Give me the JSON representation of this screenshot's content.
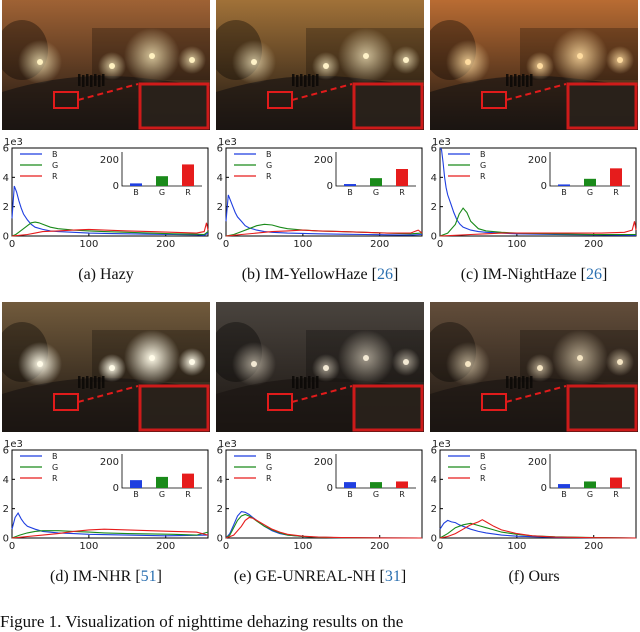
{
  "figure_caption": "Figure 1. Visualization of nighttime dehazing results on the",
  "common": {
    "scale_label": "1e3",
    "y_ticks": [
      "0",
      "2",
      "4",
      "6"
    ],
    "x_ticks": [
      "0",
      "100",
      "200"
    ],
    "inset_ticks": [
      "0",
      "200"
    ],
    "legend": [
      "B",
      "G",
      "R"
    ],
    "inset_categories": [
      "B",
      "G",
      "R"
    ]
  },
  "colors": {
    "blue": "#1f3fe0",
    "green": "#1a8a1a",
    "red": "#e61c1c",
    "zoom_box": "#e11b1b"
  },
  "panels": [
    {
      "id": "a",
      "label": "(a) Hazy",
      "cite": "",
      "photo": "hazy",
      "tint": "#9a5a2a",
      "glow": "#fff1c0",
      "glow_strength": 0.75
    },
    {
      "id": "b",
      "label": "(b) IM-YellowHaze [",
      "cite": "26",
      "photo": "yellowhaze",
      "tint": "#9c6a2e",
      "glow": "#fff2c8",
      "glow_strength": 0.7
    },
    {
      "id": "c",
      "label": "(c) IM-NightHaze [",
      "cite": "26",
      "photo": "nighthaze",
      "tint": "#b56428",
      "glow": "#ffdca0",
      "glow_strength": 0.85
    },
    {
      "id": "d",
      "label": "(d) IM-NHR [",
      "cite": "51",
      "photo": "nhr",
      "tint": "#6a5232",
      "glow": "#fffbe8",
      "glow_strength": 1.0
    },
    {
      "id": "e",
      "label": "(e) GE-UNREAL-NH [",
      "cite": "31",
      "photo": "unreal",
      "tint": "#403a34",
      "glow": "#f3e9d4",
      "glow_strength": 0.6
    },
    {
      "id": "f",
      "label": "(f) Ours",
      "cite": "",
      "photo": "ours",
      "tint": "#5a4430",
      "glow": "#f6e6c4",
      "glow_strength": 0.65
    }
  ],
  "chart_data": [
    {
      "type": "line",
      "panel": "(a) Hazy",
      "xlim": [
        0,
        255
      ],
      "ylim": [
        0,
        6
      ],
      "y_unit": "1e3",
      "series": [
        {
          "name": "B",
          "x": [
            0,
            3,
            6,
            9,
            12,
            15,
            20,
            25,
            30,
            40,
            50,
            60,
            80,
            100,
            120,
            150,
            180,
            210,
            240,
            250,
            255
          ],
          "values": [
            1.2,
            3.4,
            3.0,
            2.4,
            1.9,
            1.5,
            1.1,
            0.8,
            0.6,
            0.45,
            0.35,
            0.3,
            0.25,
            0.2,
            0.18,
            0.15,
            0.12,
            0.1,
            0.08,
            0.05,
            0.2
          ]
        },
        {
          "name": "G",
          "x": [
            0,
            5,
            10,
            15,
            20,
            25,
            30,
            35,
            40,
            50,
            60,
            80,
            100,
            120,
            150,
            180,
            210,
            240,
            250,
            255
          ],
          "values": [
            0,
            0.1,
            0.3,
            0.5,
            0.7,
            0.9,
            0.95,
            0.9,
            0.8,
            0.6,
            0.5,
            0.4,
            0.35,
            0.3,
            0.25,
            0.2,
            0.15,
            0.12,
            0.1,
            0.3
          ]
        },
        {
          "name": "R",
          "x": [
            0,
            10,
            20,
            30,
            40,
            60,
            80,
            100,
            120,
            150,
            180,
            210,
            240,
            250,
            253,
            255
          ],
          "values": [
            0,
            0.05,
            0.1,
            0.2,
            0.3,
            0.35,
            0.4,
            0.45,
            0.4,
            0.35,
            0.3,
            0.25,
            0.2,
            0.3,
            0.9,
            0.4
          ]
        }
      ],
      "inset": {
        "type": "bar",
        "categories": [
          "B",
          "G",
          "R"
        ],
        "values": [
          20,
          75,
          165
        ],
        "ylim": [
          0,
          260
        ]
      }
    },
    {
      "type": "line",
      "panel": "(b) IM-YellowHaze",
      "xlim": [
        0,
        255
      ],
      "ylim": [
        0,
        6
      ],
      "y_unit": "1e3",
      "series": [
        {
          "name": "B",
          "x": [
            0,
            3,
            6,
            9,
            12,
            15,
            20,
            25,
            30,
            40,
            50,
            60,
            80,
            100,
            120,
            150,
            180,
            210,
            240,
            255
          ],
          "values": [
            1.0,
            2.8,
            2.4,
            2.0,
            1.6,
            1.3,
            1.0,
            0.7,
            0.55,
            0.4,
            0.3,
            0.25,
            0.2,
            0.18,
            0.15,
            0.12,
            0.1,
            0.08,
            0.06,
            0.1
          ]
        },
        {
          "name": "G",
          "x": [
            0,
            10,
            20,
            30,
            40,
            50,
            60,
            70,
            80,
            100,
            120,
            150,
            180,
            210,
            240,
            255
          ],
          "values": [
            0,
            0.1,
            0.3,
            0.5,
            0.7,
            0.8,
            0.75,
            0.6,
            0.5,
            0.4,
            0.35,
            0.3,
            0.25,
            0.2,
            0.15,
            0.2
          ]
        },
        {
          "name": "R",
          "x": [
            0,
            10,
            20,
            40,
            60,
            80,
            100,
            120,
            150,
            180,
            210,
            240,
            250,
            255
          ],
          "values": [
            0,
            0.05,
            0.1,
            0.2,
            0.3,
            0.35,
            0.4,
            0.35,
            0.3,
            0.25,
            0.2,
            0.2,
            0.4,
            0.2
          ]
        }
      ],
      "inset": {
        "type": "bar",
        "categories": [
          "B",
          "G",
          "R"
        ],
        "values": [
          15,
          60,
          130
        ],
        "ylim": [
          0,
          260
        ]
      }
    },
    {
      "type": "line",
      "panel": "(c) IM-NightHaze",
      "xlim": [
        0,
        255
      ],
      "ylim": [
        0,
        6
      ],
      "y_unit": "1e3",
      "series": [
        {
          "name": "B",
          "x": [
            0,
            2,
            4,
            6,
            8,
            10,
            14,
            18,
            22,
            26,
            30,
            40,
            50,
            60,
            80,
            100,
            150,
            200,
            255
          ],
          "values": [
            6.5,
            5.9,
            5.0,
            4.0,
            3.3,
            2.8,
            2.2,
            1.6,
            1.1,
            0.8,
            0.6,
            0.4,
            0.3,
            0.25,
            0.2,
            0.15,
            0.1,
            0.08,
            0.05
          ]
        },
        {
          "name": "G",
          "x": [
            0,
            10,
            20,
            25,
            30,
            35,
            40,
            50,
            60,
            80,
            100,
            150,
            200,
            255
          ],
          "values": [
            0,
            0.2,
            0.8,
            1.5,
            1.9,
            1.6,
            1.0,
            0.5,
            0.35,
            0.25,
            0.2,
            0.15,
            0.1,
            0.1
          ]
        },
        {
          "name": "R",
          "x": [
            0,
            20,
            40,
            60,
            80,
            100,
            120,
            150,
            180,
            210,
            240,
            250,
            253,
            255
          ],
          "values": [
            0,
            0.05,
            0.1,
            0.15,
            0.2,
            0.2,
            0.2,
            0.2,
            0.2,
            0.2,
            0.25,
            0.4,
            1.0,
            0.4
          ]
        }
      ],
      "inset": {
        "type": "bar",
        "categories": [
          "B",
          "G",
          "R"
        ],
        "values": [
          12,
          55,
          135
        ],
        "ylim": [
          0,
          260
        ]
      }
    },
    {
      "type": "line",
      "panel": "(d) IM-NHR",
      "xlim": [
        0,
        255
      ],
      "ylim": [
        0,
        6
      ],
      "y_unit": "1e3",
      "series": [
        {
          "name": "B",
          "x": [
            0,
            4,
            8,
            12,
            16,
            20,
            30,
            40,
            60,
            80,
            100,
            150,
            200,
            255
          ],
          "values": [
            0.6,
            1.4,
            1.7,
            1.3,
            1.0,
            0.8,
            0.6,
            0.45,
            0.35,
            0.3,
            0.25,
            0.2,
            0.15,
            0.2
          ]
        },
        {
          "name": "G",
          "x": [
            0,
            10,
            20,
            30,
            40,
            60,
            80,
            100,
            120,
            150,
            180,
            210,
            240,
            255
          ],
          "values": [
            0,
            0.2,
            0.35,
            0.45,
            0.5,
            0.5,
            0.45,
            0.4,
            0.35,
            0.3,
            0.28,
            0.25,
            0.2,
            0.4
          ]
        },
        {
          "name": "R",
          "x": [
            0,
            10,
            20,
            40,
            60,
            80,
            100,
            120,
            150,
            180,
            210,
            240,
            255
          ],
          "values": [
            0,
            0.05,
            0.1,
            0.2,
            0.3,
            0.45,
            0.55,
            0.6,
            0.55,
            0.5,
            0.45,
            0.4,
            0.2
          ]
        }
      ],
      "inset": {
        "type": "bar",
        "categories": [
          "B",
          "G",
          "R"
        ],
        "values": [
          60,
          85,
          110
        ],
        "ylim": [
          0,
          260
        ]
      }
    },
    {
      "type": "line",
      "panel": "(e) GE-UNREAL-NH",
      "xlim": [
        0,
        255
      ],
      "ylim": [
        0,
        6
      ],
      "y_unit": "1e3",
      "series": [
        {
          "name": "B",
          "x": [
            0,
            5,
            10,
            15,
            20,
            25,
            30,
            35,
            40,
            50,
            60,
            70,
            80,
            100,
            120,
            150,
            200,
            255
          ],
          "values": [
            0,
            0.3,
            0.9,
            1.5,
            1.8,
            1.75,
            1.6,
            1.4,
            1.2,
            0.8,
            0.5,
            0.3,
            0.2,
            0.1,
            0.05,
            0.02,
            0.01,
            0
          ]
        },
        {
          "name": "G",
          "x": [
            0,
            5,
            10,
            15,
            20,
            25,
            30,
            35,
            40,
            50,
            60,
            70,
            80,
            100,
            120,
            150,
            200,
            255
          ],
          "values": [
            0,
            0.2,
            0.7,
            1.2,
            1.5,
            1.6,
            1.5,
            1.35,
            1.15,
            0.8,
            0.55,
            0.35,
            0.2,
            0.1,
            0.05,
            0.02,
            0.01,
            0
          ]
        },
        {
          "name": "R",
          "x": [
            0,
            10,
            20,
            25,
            30,
            35,
            40,
            50,
            60,
            70,
            80,
            100,
            120,
            150,
            200,
            255
          ],
          "values": [
            0,
            0.2,
            0.8,
            1.2,
            1.4,
            1.35,
            1.2,
            0.9,
            0.6,
            0.4,
            0.25,
            0.12,
            0.06,
            0.03,
            0.01,
            0
          ]
        }
      ],
      "inset": {
        "type": "bar",
        "categories": [
          "B",
          "G",
          "R"
        ],
        "values": [
          45,
          45,
          50
        ],
        "ylim": [
          0,
          260
        ]
      }
    },
    {
      "type": "line",
      "panel": "(f) Ours",
      "xlim": [
        0,
        255
      ],
      "ylim": [
        0,
        6
      ],
      "y_unit": "1e3",
      "series": [
        {
          "name": "B",
          "x": [
            0,
            5,
            10,
            15,
            20,
            25,
            30,
            40,
            50,
            60,
            80,
            100,
            150,
            200,
            255
          ],
          "values": [
            0.6,
            1.0,
            1.2,
            1.1,
            1.05,
            0.9,
            0.8,
            0.6,
            0.45,
            0.35,
            0.2,
            0.12,
            0.05,
            0.02,
            0
          ]
        },
        {
          "name": "G",
          "x": [
            0,
            10,
            20,
            30,
            40,
            50,
            60,
            70,
            80,
            100,
            120,
            150,
            200,
            255
          ],
          "values": [
            0,
            0.3,
            0.7,
            0.9,
            1.0,
            0.85,
            0.7,
            0.55,
            0.4,
            0.25,
            0.15,
            0.08,
            0.03,
            0
          ]
        },
        {
          "name": "R",
          "x": [
            0,
            10,
            20,
            30,
            40,
            50,
            55,
            60,
            70,
            80,
            100,
            120,
            150,
            200,
            255
          ],
          "values": [
            0,
            0.1,
            0.3,
            0.6,
            0.9,
            1.1,
            1.25,
            1.1,
            0.8,
            0.55,
            0.3,
            0.15,
            0.06,
            0.02,
            0
          ]
        }
      ],
      "inset": {
        "type": "bar",
        "categories": [
          "B",
          "G",
          "R"
        ],
        "values": [
          30,
          50,
          80
        ],
        "ylim": [
          0,
          260
        ]
      }
    }
  ]
}
